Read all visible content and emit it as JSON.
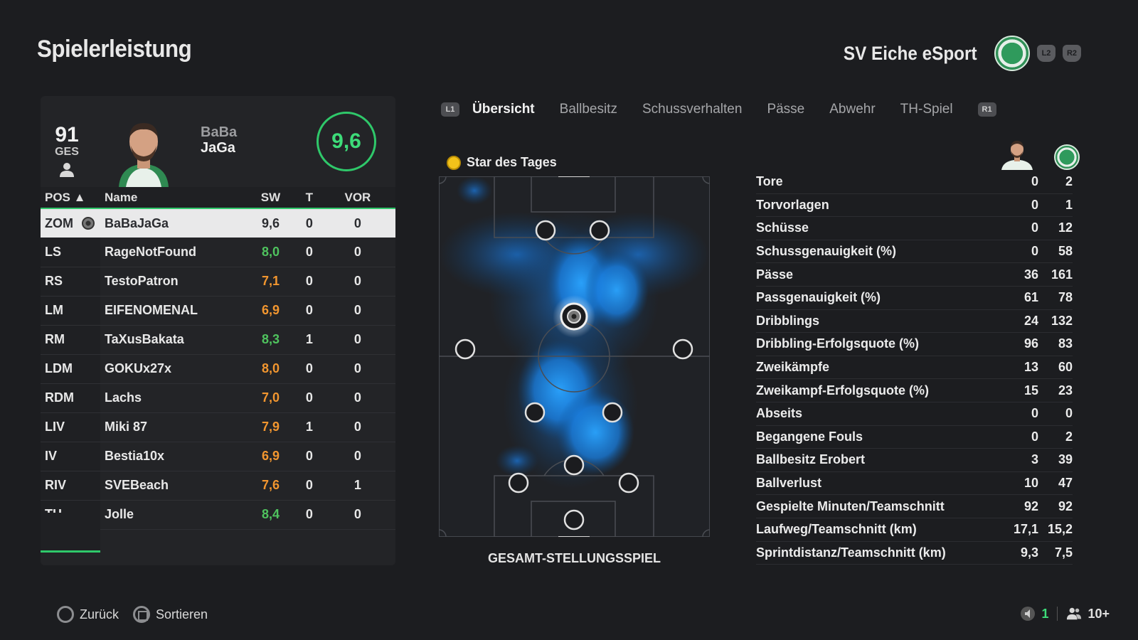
{
  "header": {
    "title": "Spielerleistung",
    "club_name": "SV Eiche eSport",
    "buttons": [
      "L2",
      "R2"
    ]
  },
  "player_card": {
    "overall": "91",
    "overall_label": "GES",
    "first_name": "BaBa",
    "last_name": "JaGa",
    "match_rating": "9,6"
  },
  "table": {
    "headers": {
      "pos": "POS ▲",
      "name": "Name",
      "sw": "SW",
      "t": "T",
      "vor": "VOR"
    },
    "rows": [
      {
        "pos": "ZOM",
        "name": "BaBaJaGa",
        "sw": "9,6",
        "t": "0",
        "vor": "0",
        "rating_class": "dark",
        "selected": true
      },
      {
        "pos": "LS",
        "name": "RageNotFound",
        "sw": "8,0",
        "t": "0",
        "vor": "0",
        "rating_class": "green"
      },
      {
        "pos": "RS",
        "name": "TestoPatron",
        "sw": "7,1",
        "t": "0",
        "vor": "0",
        "rating_class": "orange"
      },
      {
        "pos": "LM",
        "name": "EIFENOMENAL",
        "sw": "6,9",
        "t": "0",
        "vor": "0",
        "rating_class": "orange"
      },
      {
        "pos": "RM",
        "name": "TaXusBakata",
        "sw": "8,3",
        "t": "1",
        "vor": "0",
        "rating_class": "green"
      },
      {
        "pos": "LDM",
        "name": "GOKUx27x",
        "sw": "8,0",
        "t": "0",
        "vor": "0",
        "rating_class": "orange"
      },
      {
        "pos": "RDM",
        "name": "Lachs",
        "sw": "7,0",
        "t": "0",
        "vor": "0",
        "rating_class": "orange"
      },
      {
        "pos": "LIV",
        "name": "Miki 87",
        "sw": "7,9",
        "t": "1",
        "vor": "0",
        "rating_class": "orange"
      },
      {
        "pos": "IV",
        "name": "Bestia10x",
        "sw": "6,9",
        "t": "0",
        "vor": "0",
        "rating_class": "orange"
      },
      {
        "pos": "RIV",
        "name": "SVEBeach",
        "sw": "7,6",
        "t": "0",
        "vor": "1",
        "rating_class": "orange"
      },
      {
        "pos": "TH",
        "name": "Jolle",
        "sw": "8,4",
        "t": "0",
        "vor": "0",
        "rating_class": "green"
      }
    ]
  },
  "tabs": {
    "left_button": "L1",
    "right_button": "R1",
    "items": [
      "Übersicht",
      "Ballbesitz",
      "Schussverhalten",
      "Pässe",
      "Abwehr",
      "TH-Spiel"
    ],
    "active": "Übersicht"
  },
  "pitch": {
    "star_label": "Star des Tages",
    "caption": "GESAMT-STELLUNGSSPIEL"
  },
  "stats": [
    {
      "label": "Tore",
      "player": "0",
      "team": "2"
    },
    {
      "label": "Torvorlagen",
      "player": "0",
      "team": "1"
    },
    {
      "label": "Schüsse",
      "player": "0",
      "team": "12"
    },
    {
      "label": "Schussgenauigkeit (%)",
      "player": "0",
      "team": "58"
    },
    {
      "label": "Pässe",
      "player": "36",
      "team": "161"
    },
    {
      "label": "Passgenauigkeit (%)",
      "player": "61",
      "team": "78"
    },
    {
      "label": "Dribblings",
      "player": "24",
      "team": "132"
    },
    {
      "label": "Dribbling-Erfolgsquote (%)",
      "player": "96",
      "team": "83"
    },
    {
      "label": "Zweikämpfe",
      "player": "13",
      "team": "60"
    },
    {
      "label": "Zweikampf-Erfolgsquote (%)",
      "player": "15",
      "team": "23"
    },
    {
      "label": "Abseits",
      "player": "0",
      "team": "0"
    },
    {
      "label": "Begangene Fouls",
      "player": "0",
      "team": "2"
    },
    {
      "label": "Ballbesitz Erobert",
      "player": "3",
      "team": "39"
    },
    {
      "label": "Ballverlust",
      "player": "10",
      "team": "47"
    },
    {
      "label": "Gespielte Minuten/Teamschnitt",
      "player": "92",
      "team": "92"
    },
    {
      "label": "Laufweg/Teamschnitt (km)",
      "player": "17,1",
      "team": "15,2"
    },
    {
      "label": "Sprintdistanz/Teamschnitt (km)",
      "player": "9,3",
      "team": "7,5"
    }
  ],
  "footer": {
    "back_label": "Zurück",
    "sort_label": "Sortieren",
    "mic_count": "1",
    "party_count": "10+"
  },
  "colors": {
    "accent_green": "#2fc86a",
    "rating_green": "#4fc35e",
    "rating_orange": "#f2962f",
    "heatmap_blue": "#1f8fff"
  }
}
